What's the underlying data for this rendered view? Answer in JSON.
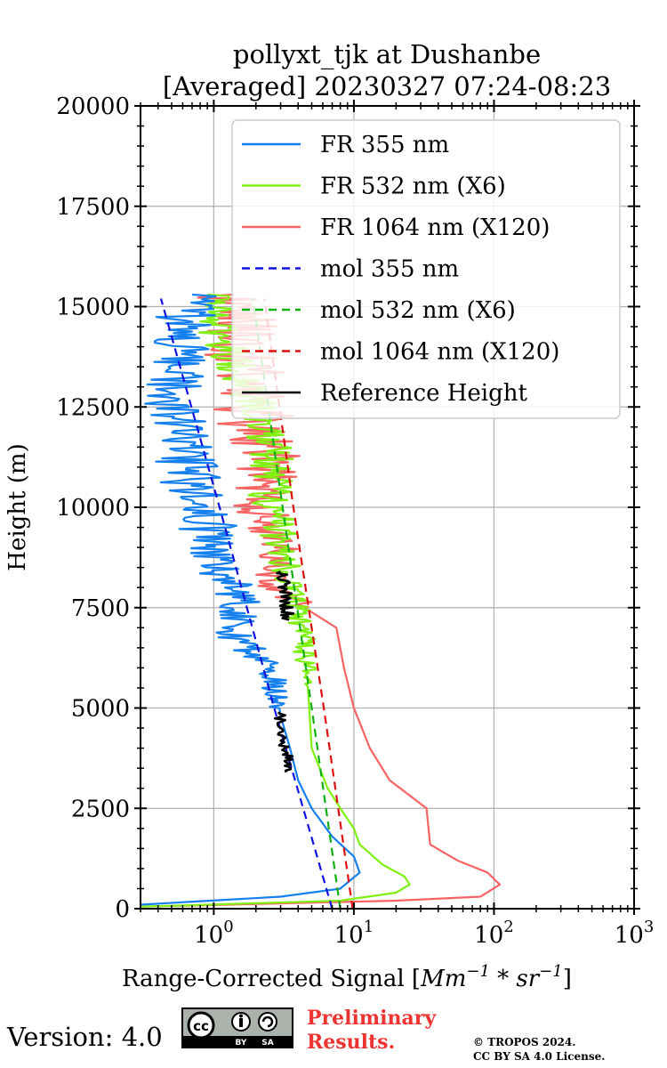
{
  "chart_data": {
    "type": "line",
    "title_lines": [
      "pollyxt_tjk at Dushanbe",
      "[Averaged] 20230327 07:24-08:23"
    ],
    "xlabel": "Range-Corrected Signal [",
    "xlabel_unit": "Mm",
    "xlabel_sup1": "−1",
    "xlabel_mid": " * sr",
    "xlabel_sup2": "−1",
    "xlabel_end": "]",
    "ylabel": "Height (m)",
    "xscale": "log",
    "xlim": [
      0.3,
      1000
    ],
    "ylim": [
      0,
      20000
    ],
    "grid": true,
    "legend_position": "top-right",
    "x_ticks": [
      {
        "value": 1,
        "base": "10",
        "exp": "0"
      },
      {
        "value": 10,
        "base": "10",
        "exp": "1"
      },
      {
        "value": 100,
        "base": "10",
        "exp": "2"
      },
      {
        "value": 1000,
        "base": "10",
        "exp": "3"
      }
    ],
    "y_ticks": [
      0,
      2500,
      5000,
      7500,
      10000,
      12500,
      15000,
      17500,
      20000
    ],
    "y_tick_labels": [
      "0",
      "2500",
      "5000",
      "7500",
      "10000",
      "12500",
      "15000",
      "17500",
      "20000"
    ],
    "series": [
      {
        "name": "FR 355 nm",
        "color": "#1580ee",
        "dash": false,
        "noise": 0.22,
        "noise_start": 5000,
        "points": [
          [
            0.3,
            100
          ],
          [
            3,
            300
          ],
          [
            8,
            500
          ],
          [
            11,
            900
          ],
          [
            10,
            1300
          ],
          [
            7,
            1800
          ],
          [
            5,
            2500
          ],
          [
            4,
            3200
          ],
          [
            3.5,
            4000
          ],
          [
            3,
            4800
          ],
          [
            2.8,
            5500
          ],
          [
            2.2,
            6200
          ],
          [
            1.4,
            6800
          ],
          [
            1.6,
            7200
          ],
          [
            1.4,
            8000
          ],
          [
            1.0,
            8700
          ],
          [
            0.9,
            9500
          ],
          [
            0.7,
            10500
          ],
          [
            0.6,
            11500
          ],
          [
            0.5,
            12500
          ],
          [
            0.55,
            13500
          ],
          [
            0.6,
            14500
          ],
          [
            0.7,
            15300
          ]
        ]
      },
      {
        "name": "FR 532 nm (X6)",
        "color": "#80f010",
        "dash": false,
        "noise": 0.16,
        "noise_start": 5500,
        "points": [
          [
            0.3,
            50
          ],
          [
            8,
            200
          ],
          [
            20,
            400
          ],
          [
            25,
            600
          ],
          [
            23,
            800
          ],
          [
            16,
            1100
          ],
          [
            11,
            1600
          ],
          [
            10,
            2000
          ],
          [
            8,
            2500
          ],
          [
            6.5,
            3000
          ],
          [
            5,
            4000
          ],
          [
            4.8,
            5000
          ],
          [
            4.6,
            6000
          ],
          [
            4.2,
            7000
          ],
          [
            3.8,
            7600
          ],
          [
            3.3,
            8500
          ],
          [
            2.8,
            9500
          ],
          [
            2.5,
            10500
          ],
          [
            2.6,
            11000
          ],
          [
            2.4,
            12000
          ],
          [
            1.8,
            13000
          ],
          [
            1.2,
            14000
          ],
          [
            0.9,
            15300
          ]
        ]
      },
      {
        "name": "FR 1064 nm (X120)",
        "color": "#f86464",
        "dash": false,
        "noise": 0.28,
        "noise_start": 7500,
        "points": [
          [
            0.3,
            50
          ],
          [
            20,
            200
          ],
          [
            80,
            300
          ],
          [
            110,
            600
          ],
          [
            90,
            900
          ],
          [
            55,
            1200
          ],
          [
            35,
            1600
          ],
          [
            33,
            2500
          ],
          [
            18,
            3200
          ],
          [
            13,
            4000
          ],
          [
            10,
            5000
          ],
          [
            8.5,
            6000
          ],
          [
            7.5,
            7000
          ],
          [
            4,
            7600
          ],
          [
            2.5,
            8000
          ],
          [
            2.8,
            9000
          ],
          [
            2.2,
            10000
          ],
          [
            2.5,
            11000
          ],
          [
            2.0,
            12000
          ],
          [
            1.8,
            13000
          ],
          [
            1.6,
            14000
          ],
          [
            1.4,
            15300
          ]
        ]
      },
      {
        "name": "mol 355 nm",
        "color": "#1010e0",
        "dash": true,
        "noise": 0,
        "noise_start": 0,
        "points": [
          [
            7.0,
            0
          ],
          [
            2.7,
            5000
          ],
          [
            1.1,
            10000
          ],
          [
            0.42,
            15200
          ]
        ]
      },
      {
        "name": "mol 532 nm (X6)",
        "color": "#10b010",
        "dash": true,
        "noise": 0,
        "noise_start": 0,
        "points": [
          [
            8.0,
            0
          ],
          [
            5.0,
            5000
          ],
          [
            3.1,
            10000
          ],
          [
            1.9,
            15200
          ]
        ]
      },
      {
        "name": "mol 1064 nm (X120)",
        "color": "#dd1010",
        "dash": true,
        "noise": 0,
        "noise_start": 0,
        "points": [
          [
            9.8,
            0
          ],
          [
            6.1,
            5000
          ],
          [
            3.7,
            10000
          ],
          [
            2.3,
            15200
          ]
        ]
      },
      {
        "name": "Reference Height",
        "color": "#000000",
        "dash": false,
        "noise": 0.05,
        "noise_start": 0,
        "segments": [
          [
            [
              3.6,
              3400
            ],
            [
              3.4,
              3800
            ],
            [
              3.1,
              4300
            ],
            [
              2.9,
              4900
            ]
          ],
          [
            [
              3.4,
              7200
            ],
            [
              3.3,
              7700
            ],
            [
              3.2,
              8200
            ],
            [
              3.0,
              8400
            ]
          ]
        ]
      }
    ]
  },
  "footer": {
    "version_label": "Version: 4.0",
    "license_icon": "cc-by-sa-icon",
    "preliminary_line1": "Preliminary",
    "preliminary_line2": "Results.",
    "copyright_line1": "© TROPOS 2024.",
    "copyright_line2": "CC BY SA 4.0 License."
  }
}
